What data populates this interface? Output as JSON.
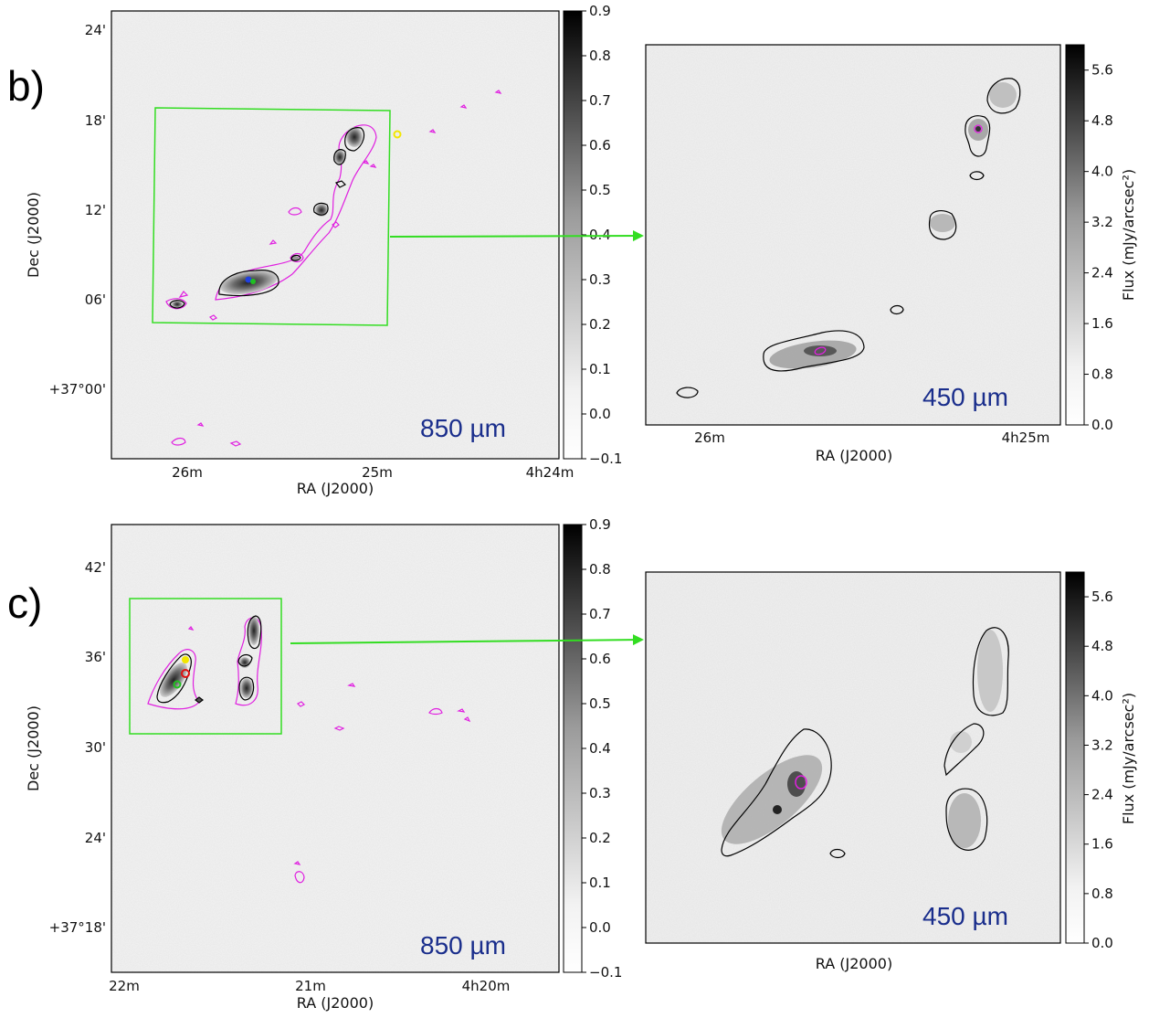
{
  "chart_data": [
    {
      "panel": "b)",
      "type": "heatmap",
      "band": "850 µm",
      "xlabel": "RA (J2000)",
      "ylabel": "Dec (J2000)",
      "x_ticks": [
        "26m",
        "25m",
        "4h24m"
      ],
      "y_ticks": [
        "24'",
        "18'",
        "12'",
        "06'",
        "+37°00'"
      ],
      "colorbar_ticks": [
        0.9,
        0.8,
        0.7,
        0.6,
        0.5,
        0.4,
        0.3,
        0.2,
        0.1,
        0.0,
        -0.1
      ],
      "colorbar_range": [
        -0.1,
        0.9
      ],
      "colormap": "grayscale"
    },
    {
      "panel": "b)",
      "type": "heatmap",
      "band": "450 µm",
      "xlabel": "RA (J2000)",
      "x_ticks": [
        "26m",
        "4h25m"
      ],
      "colorbar_label": "Flux (mJy/arcsec²)",
      "colorbar_ticks": [
        5.6,
        4.8,
        4.0,
        3.2,
        2.4,
        1.6,
        0.8,
        0.0
      ],
      "colorbar_range": [
        0.0,
        6.0
      ],
      "colormap": "grayscale"
    },
    {
      "panel": "c)",
      "type": "heatmap",
      "band": "850 µm",
      "xlabel": "RA (J2000)",
      "ylabel": "Dec (J2000)",
      "x_ticks": [
        "22m",
        "21m",
        "4h20m"
      ],
      "y_ticks": [
        "42'",
        "36'",
        "30'",
        "24'",
        "+37°18'"
      ],
      "colorbar_ticks": [
        0.9,
        0.8,
        0.7,
        0.6,
        0.5,
        0.4,
        0.3,
        0.2,
        0.1,
        0.0,
        -0.1
      ],
      "colorbar_range": [
        -0.1,
        0.9
      ],
      "colormap": "grayscale"
    },
    {
      "panel": "c)",
      "type": "heatmap",
      "band": "450 µm",
      "xlabel": "RA (J2000)",
      "colorbar_label": "Flux (mJy/arcsec²)",
      "colorbar_ticks": [
        5.6,
        4.8,
        4.0,
        3.2,
        2.4,
        1.6,
        0.8,
        0.0
      ],
      "colorbar_range": [
        0.0,
        6.0
      ],
      "colormap": "grayscale"
    }
  ],
  "colors": {
    "zoom_box": "#33dd22",
    "arrow": "#33dd22",
    "contour_850": "#000000",
    "contour_other": "#e020e0",
    "label_text": "#1a2e8c",
    "marker_yellow": "#f2e600",
    "marker_red": "#e01010",
    "marker_green": "#20c020",
    "marker_blue": "#2040e0"
  }
}
